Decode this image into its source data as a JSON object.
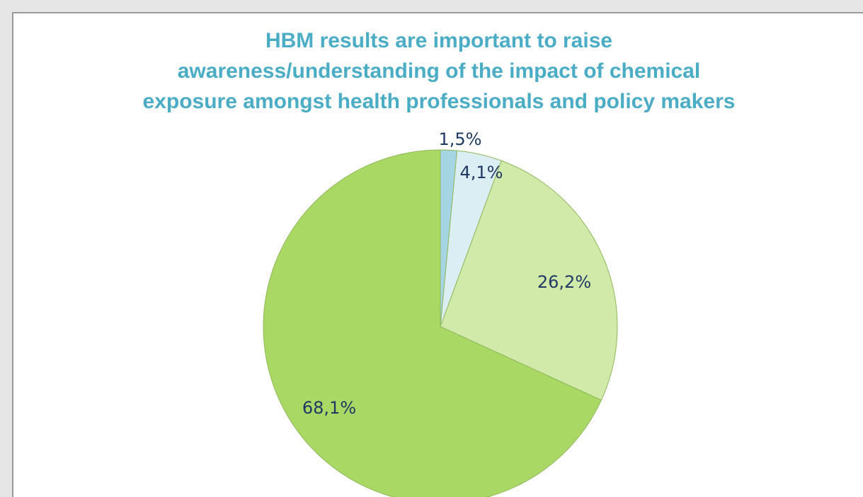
{
  "chart_data": {
    "type": "pie",
    "title_lines": [
      "HBM results are important to raise",
      "awareness/understanding of the impact of chemical",
      "exposure amongst health professionals and policy makers"
    ],
    "values": [
      1.5,
      4.1,
      26.2,
      68.1
    ],
    "value_labels": [
      "1,5%",
      "4,1%",
      "26,2%",
      "68,1%"
    ],
    "colors": [
      "#a5d5e2",
      "#dbeef4",
      "#d1eaa9",
      "#a9d865"
    ]
  }
}
